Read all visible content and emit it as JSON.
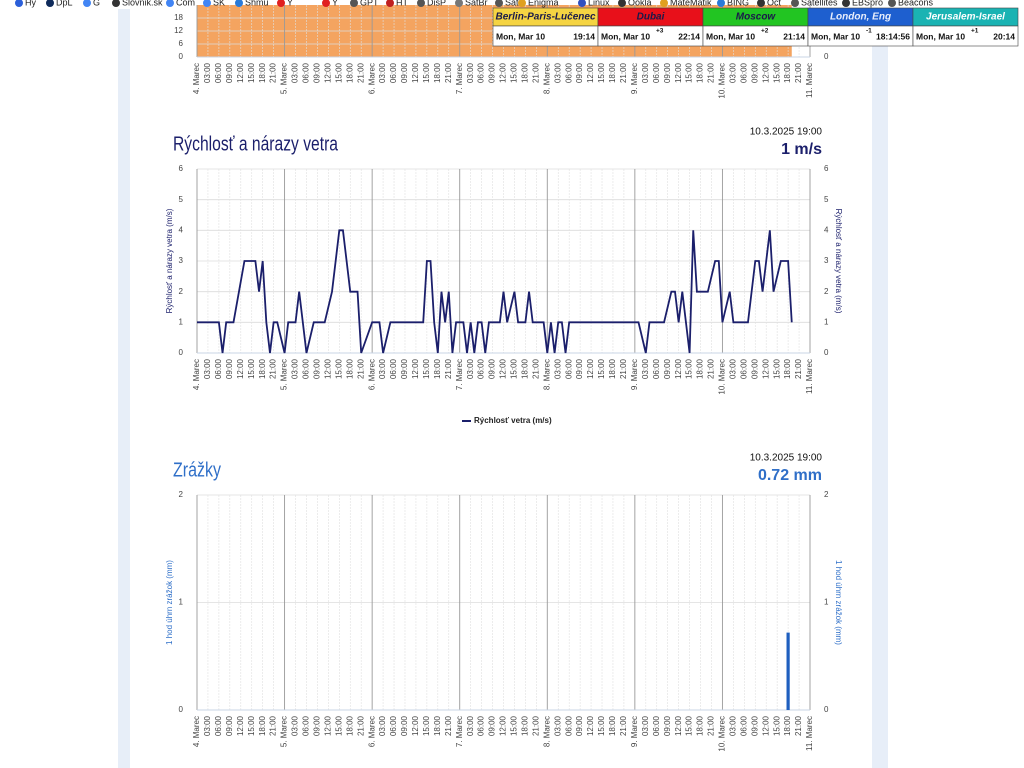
{
  "bookmarks": [
    "Hy",
    "DpL",
    "G",
    "Slovnik.sk",
    "Com",
    "SK",
    "Shmu",
    "Y",
    "Y",
    "GPT",
    "HT",
    "DisP",
    "SatBr",
    "SatC",
    "Enigma",
    "Linux",
    "Ookla",
    "MateMatik",
    "BING",
    "Oct",
    "Satellites",
    "EBSpro",
    "Beacons"
  ],
  "clocks": [
    {
      "city": "Berlin-Paris-Lučenec",
      "date": "Mon, Mar 10",
      "time": "19:14",
      "color": "#f5d442",
      "text_color": "#1a1a4a"
    },
    {
      "city": "Dubai",
      "date": "Mon, Mar 10",
      "time": "22:14",
      "offset": "+3",
      "color": "#e8101a",
      "text_color": "#1a1a4a"
    },
    {
      "city": "Moscow",
      "date": "Mon, Mar 10",
      "time": "21:14",
      "offset": "+2",
      "color": "#22c522",
      "text_color": "#1a1a4a"
    },
    {
      "city": "London, Eng",
      "date": "Mon, Mar 10",
      "time": "18:14:56",
      "offset": "-1",
      "color": "#1e5fcf",
      "text_color": "#e8eefc"
    },
    {
      "city": "Jerusalem-Israel",
      "date": "Mon, Mar 10",
      "time": "20:14",
      "offset": "+1",
      "color": "#1ab3b3",
      "text_color": "#ffffff"
    }
  ],
  "time_axis": [
    "4. Marec",
    "03:00",
    "06:00",
    "09:00",
    "12:00",
    "15:00",
    "18:00",
    "21:00",
    "5. Marec",
    "03:00",
    "06:00",
    "09:00",
    "12:00",
    "15:00",
    "18:00",
    "21:00",
    "6. Marec",
    "03:00",
    "06:00",
    "09:00",
    "12:00",
    "15:00",
    "18:00",
    "21:00",
    "7. Marec",
    "03:00",
    "06:00",
    "09:00",
    "12:00",
    "15:00",
    "18:00",
    "21:00",
    "8. Marec",
    "03:00",
    "06:00",
    "09:00",
    "12:00",
    "15:00",
    "18:00",
    "21:00",
    "9. Marec",
    "03:00",
    "06:00",
    "09:00",
    "12:00",
    "15:00",
    "18:00",
    "21:00",
    "10. Marec",
    "03:00",
    "06:00",
    "09:00",
    "12:00",
    "15:00",
    "18:00",
    "21:00",
    "11. Marec"
  ],
  "chart_data": [
    {
      "type": "area",
      "x": [
        0,
        163
      ],
      "values": [
        24,
        24
      ],
      "color": "#f4a460",
      "xlim": [
        0,
        168
      ],
      "ylim": [
        0,
        24
      ],
      "yticks": [
        0,
        6,
        12,
        18
      ],
      "grid": true
    },
    {
      "type": "line",
      "title": "Rýchlosť a nárazy vetra",
      "timestamp": "10.3.2025 19:00",
      "current": "1 m/s",
      "y_label": "Rýchlosť a nárazy vetra (m/s)",
      "text_color": "#1b1f6b",
      "xlim": [
        0,
        168
      ],
      "ylim": [
        0,
        6
      ],
      "yticks": [
        0,
        1,
        2,
        3,
        4,
        5,
        6
      ],
      "grid": true,
      "x": [
        0,
        6,
        7,
        8,
        10,
        13,
        16,
        17,
        18,
        19,
        20,
        21,
        22,
        24,
        25,
        27,
        28,
        30,
        32,
        35,
        37,
        39,
        40,
        42,
        44,
        45,
        48,
        50,
        51,
        53,
        62,
        63,
        64,
        65,
        66,
        67,
        68,
        69,
        70,
        71,
        73,
        74,
        75,
        76,
        77,
        78,
        79,
        80,
        83,
        84,
        85,
        87,
        88,
        90,
        91,
        92,
        95,
        96,
        97,
        98,
        99,
        100,
        101,
        102,
        121,
        123,
        124,
        128,
        130,
        131,
        132,
        133,
        135,
        136,
        137,
        140,
        142,
        143,
        144,
        146,
        147,
        151,
        153,
        154,
        155,
        157,
        158,
        160,
        162,
        163
      ],
      "series": [
        {
          "name": "Rýchlosť vetra (m/s)",
          "color": "#1b1f6b",
          "values": [
            1,
            1,
            0,
            1,
            1,
            3,
            3,
            2,
            3,
            1,
            0,
            1,
            1,
            0,
            1,
            1,
            2,
            0,
            1,
            1,
            2,
            4,
            4,
            2,
            2,
            0,
            1,
            1,
            0,
            1,
            1,
            3,
            3,
            1,
            0,
            2,
            1,
            2,
            0,
            1,
            1,
            0,
            1,
            0,
            1,
            1,
            0,
            1,
            1,
            2,
            1,
            2,
            1,
            1,
            2,
            1,
            1,
            0,
            1,
            0,
            1,
            1,
            0,
            1,
            1,
            0,
            1,
            1,
            2,
            2,
            1,
            2,
            0,
            4,
            2,
            2,
            3,
            3,
            1,
            2,
            1,
            1,
            3,
            3,
            2,
            4,
            2,
            3,
            3,
            1
          ]
        }
      ]
    },
    {
      "type": "bar",
      "title": "Zrážky",
      "timestamp": "10.3.2025 19:00",
      "current": "0.72 mm",
      "y_label": "1 hod úhrn zrážok (mm)",
      "text_color": "#2f6fc8",
      "xlim": [
        0,
        168
      ],
      "ylim": [
        0,
        2
      ],
      "yticks": [
        0,
        1,
        2
      ],
      "grid": true,
      "x": [
        162
      ],
      "values": [
        0.72
      ],
      "color": "#1f5fbf"
    }
  ]
}
